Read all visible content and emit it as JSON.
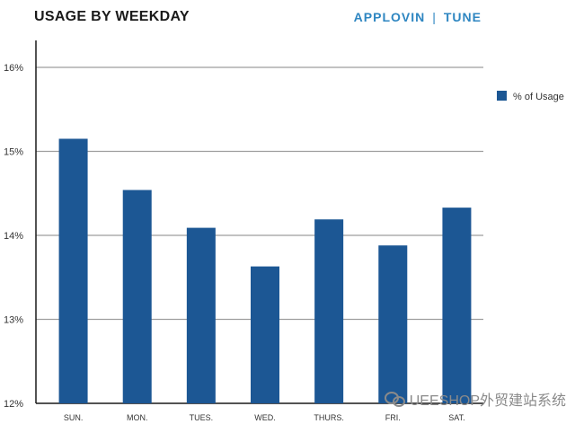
{
  "header": {
    "title": "USAGE BY WEEKDAY",
    "brand_left": "APPLOVIN",
    "brand_sep": "|",
    "brand_right": "TUNE"
  },
  "chart_data": {
    "type": "bar",
    "title": "USAGE BY WEEKDAY",
    "categories": [
      "SUN.",
      "MON.",
      "TUES.",
      "WED.",
      "THURS.",
      "FRI.",
      "SAT."
    ],
    "series": [
      {
        "name": "% of Usage",
        "values": [
          15.15,
          14.54,
          14.09,
          13.63,
          14.19,
          13.88,
          14.33
        ]
      }
    ],
    "ylim": [
      12,
      16
    ],
    "yticks": [
      12,
      13,
      14,
      15,
      16
    ],
    "ytick_labels": [
      "12%",
      "13%",
      "14%",
      "15%",
      "16%"
    ],
    "xlabel": "",
    "ylabel": "",
    "grid": true,
    "legend_position": "top-right",
    "colors": {
      "bar": "#1c5794",
      "grid": "#9e9e9e",
      "axis": "#1a1a1a"
    }
  },
  "watermark": {
    "text": "UEESHOP外贸建站系统"
  }
}
